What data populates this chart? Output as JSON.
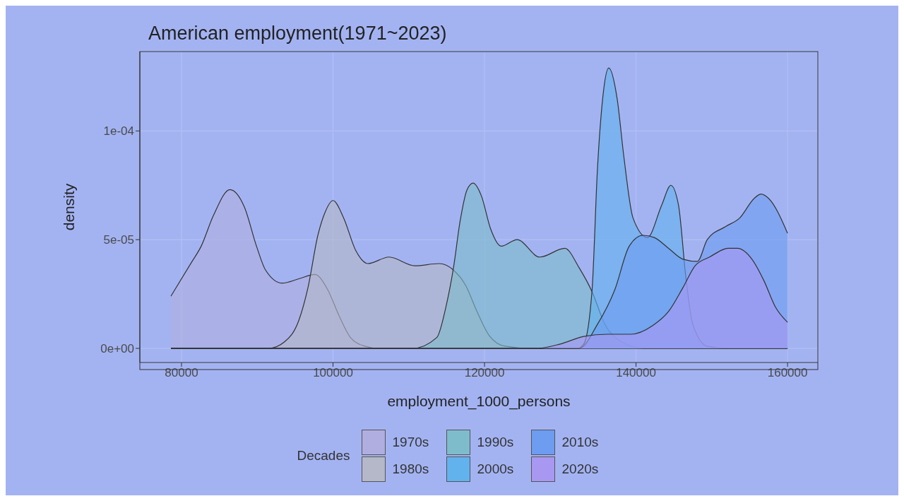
{
  "chart_data": {
    "type": "area",
    "title": "American employment(1971~2023)",
    "xlabel": "employment_1000_persons",
    "ylabel": "density",
    "legend_title": "Decades",
    "legend": "bottom",
    "grid": true,
    "xlim": [
      74500,
      164000
    ],
    "xticks": [
      80000,
      100000,
      120000,
      140000,
      160000
    ],
    "ylim": [
      -6.5e-06,
      0.0001365
    ],
    "yticks": [
      {
        "value": 0,
        "label": "0e+00"
      },
      {
        "value": 5e-05,
        "label": "5e-05"
      },
      {
        "value": 0.0001,
        "label": "1e-04"
      }
    ],
    "series": [
      {
        "name": "1970s",
        "color": "#b0aee0",
        "x": [
          78600,
          81400,
          82600,
          84200,
          86400,
          88300,
          89900,
          91100,
          93300,
          95500,
          97600,
          99300,
          100800,
          102300,
          104200,
          106000,
          160000
        ],
        "values": [
          2.4e-05,
          4e-05,
          4.7e-05,
          6.1e-05,
          7.3e-05,
          6.5e-05,
          4.7e-05,
          3.6e-05,
          3e-05,
          3.2e-05,
          3.4e-05,
          2.7e-05,
          1.5e-05,
          5e-06,
          1e-06,
          0,
          0
        ]
      },
      {
        "name": "1980s",
        "color": "#b4b8c8",
        "x": [
          78600,
          91500,
          93600,
          95500,
          96700,
          98000,
          99000,
          100000,
          101400,
          103000,
          104600,
          107400,
          110800,
          114000,
          115900,
          117500,
          119000,
          120600,
          122700,
          126000,
          160000
        ],
        "values": [
          0,
          0,
          3e-06,
          1.3e-05,
          2.8e-05,
          5.2e-05,
          6.3e-05,
          6.8e-05,
          6e-05,
          4.5e-05,
          3.9e-05,
          4.2e-05,
          3.8e-05,
          3.9e-05,
          3.6e-05,
          2.9e-05,
          1.7e-05,
          6e-06,
          1e-06,
          0,
          0
        ]
      },
      {
        "name": "1990s",
        "color": "#7ebccc",
        "x": [
          78600,
          110500,
          113700,
          114900,
          115900,
          116800,
          117700,
          118500,
          119600,
          120800,
          122200,
          124300,
          127300,
          130600,
          132500,
          134200,
          135900,
          138100,
          141000,
          160000
        ],
        "values": [
          0,
          0,
          5e-06,
          1.9e-05,
          3.7e-05,
          5.9e-05,
          7.3e-05,
          7.6e-05,
          7e-05,
          5.5e-05,
          4.7e-05,
          5e-05,
          4.2e-05,
          4.6e-05,
          3.7e-05,
          2.6e-05,
          1.1e-05,
          3e-06,
          0,
          0
        ]
      },
      {
        "name": "2000s",
        "color": "#62b2ee",
        "x": [
          78600,
          132300,
          133100,
          134200,
          134900,
          135600,
          136400,
          137500,
          138400,
          139600,
          141500,
          143400,
          144600,
          145600,
          146600,
          147500,
          149400,
          152000,
          160000
        ],
        "values": [
          0,
          0,
          2e-06,
          2.7e-05,
          8.2e-05,
          0.000115,
          0.000129,
          0.000115,
          8.8e-05,
          6e-05,
          5.1e-05,
          6.6e-05,
          7.5e-05,
          6.6e-05,
          3.2e-05,
          1.1e-05,
          1e-06,
          0,
          0
        ]
      },
      {
        "name": "2010s",
        "color": "#6d9cf0",
        "x": [
          78600,
          132500,
          134900,
          137200,
          139100,
          140900,
          142400,
          144300,
          146200,
          148100,
          149400,
          151800,
          153700,
          155600,
          156500,
          157500,
          160000
        ],
        "values": [
          0,
          0,
          1.1e-05,
          2.7e-05,
          4.7e-05,
          5.2e-05,
          5.1e-05,
          4.6e-05,
          4.1e-05,
          4e-05,
          5e-05,
          5.6e-05,
          6e-05,
          6.9e-05,
          7.1e-05,
          6.9e-05,
          5.3e-05
        ]
      },
      {
        "name": "2020s",
        "color": "#a898f2",
        "x": [
          78600,
          126900,
          130000,
          133100,
          136200,
          139300,
          142200,
          144300,
          146200,
          147800,
          149700,
          152200,
          153400,
          155300,
          156900,
          158400,
          160000
        ],
        "values": [
          0,
          0,
          2e-06,
          5.5e-06,
          6.5e-06,
          6.5e-06,
          1.05e-05,
          1.7e-05,
          2.8e-05,
          3.8e-05,
          4.2e-05,
          4.6e-05,
          4.6e-05,
          4.1e-05,
          3.1e-05,
          1.9e-05,
          1.2e-05
        ]
      }
    ]
  }
}
